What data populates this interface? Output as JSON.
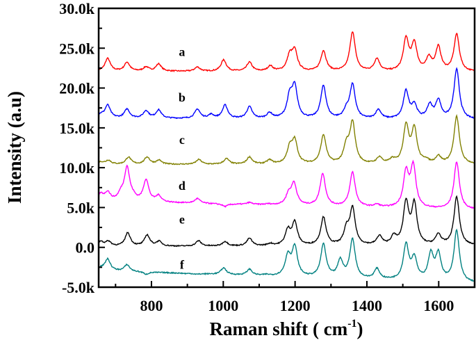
{
  "chart_data": {
    "type": "line",
    "xlabel": "Raman shift ( cm",
    "xlabel_sup": "-1",
    "xlabel_end": ")",
    "ylabel": "Intensity (a.u)",
    "xlim": [
      653,
      1700
    ],
    "ylim": [
      -5000,
      30000
    ],
    "xticks": [
      800,
      1000,
      1200,
      1400,
      1600
    ],
    "xticklabels": [
      "800",
      "1000",
      "1200",
      "1400",
      "1600"
    ],
    "yticks": [
      -5000,
      0,
      5000,
      10000,
      15000,
      20000,
      25000,
      30000
    ],
    "yticklabels": [
      "-5.0k",
      "0.0",
      "5.0k",
      "10.0k",
      "15.0k",
      "20.0k",
      "25.0k",
      "30.0k"
    ],
    "grid": false,
    "series": [
      {
        "label": "a",
        "label_x": 885,
        "label_y": 24000,
        "color": "#ff0000",
        "baseline_start": 22100,
        "baseline_end": 22000,
        "peaks": [
          [
            678,
            23700
          ],
          [
            732,
            23200
          ],
          [
            785,
            22600
          ],
          [
            820,
            23000
          ],
          [
            928,
            22600
          ],
          [
            1001,
            23500
          ],
          [
            1073,
            23200
          ],
          [
            1131,
            22700
          ],
          [
            1185,
            23900
          ],
          [
            1199,
            24500
          ],
          [
            1279,
            24600
          ],
          [
            1360,
            27000
          ],
          [
            1428,
            23600
          ],
          [
            1509,
            26000
          ],
          [
            1532,
            25400
          ],
          [
            1573,
            23600
          ],
          [
            1599,
            25000
          ],
          [
            1650,
            26700
          ]
        ]
      },
      {
        "label": "b",
        "label_x": 885,
        "label_y": 18300,
        "color": "#0000ff",
        "baseline_start": 16200,
        "baseline_end": 16000,
        "peaks": [
          [
            659,
            16600
          ],
          [
            678,
            17800
          ],
          [
            732,
            17300
          ],
          [
            785,
            17100
          ],
          [
            820,
            17200
          ],
          [
            928,
            17300
          ],
          [
            966,
            16600
          ],
          [
            1005,
            17800
          ],
          [
            1073,
            17600
          ],
          [
            1129,
            16800
          ],
          [
            1185,
            18700
          ],
          [
            1199,
            19900
          ],
          [
            1279,
            20200
          ],
          [
            1343,
            17000
          ],
          [
            1360,
            20300
          ],
          [
            1432,
            17200
          ],
          [
            1509,
            19500
          ],
          [
            1532,
            17700
          ],
          [
            1575,
            17700
          ],
          [
            1599,
            18300
          ],
          [
            1650,
            22300
          ]
        ]
      },
      {
        "label": "c",
        "label_x": 885,
        "label_y": 13000,
        "color": "#808000",
        "baseline_start": 10400,
        "baseline_end": 10400,
        "peaks": [
          [
            659,
            10700
          ],
          [
            680,
            10900
          ],
          [
            736,
            11300
          ],
          [
            788,
            11300
          ],
          [
            821,
            10900
          ],
          [
            932,
            11000
          ],
          [
            1009,
            11100
          ],
          [
            1073,
            11300
          ],
          [
            1129,
            10900
          ],
          [
            1185,
            12300
          ],
          [
            1199,
            13200
          ],
          [
            1279,
            14000
          ],
          [
            1343,
            12500
          ],
          [
            1360,
            15500
          ],
          [
            1435,
            11200
          ],
          [
            1471,
            10900
          ],
          [
            1509,
            15100
          ],
          [
            1532,
            14700
          ],
          [
            1564,
            10800
          ],
          [
            1599,
            11300
          ],
          [
            1650,
            16400
          ]
        ]
      },
      {
        "label": "d",
        "label_x": 885,
        "label_y": 7200,
        "color": "#ff00ff",
        "baseline_start": 5800,
        "baseline_end": 4700,
        "peaks": [
          [
            659,
            6600
          ],
          [
            678,
            6800
          ],
          [
            715,
            6500
          ],
          [
            732,
            9900
          ],
          [
            749,
            6100
          ],
          [
            785,
            8400
          ],
          [
            820,
            6400
          ],
          [
            928,
            6100
          ],
          [
            1005,
            5100
          ],
          [
            1073,
            5600
          ],
          [
            1125,
            5400
          ],
          [
            1182,
            6500
          ],
          [
            1197,
            7900
          ],
          [
            1277,
            9200
          ],
          [
            1360,
            9400
          ],
          [
            1428,
            5300
          ],
          [
            1509,
            9200
          ],
          [
            1529,
            10000
          ],
          [
            1650,
            10700
          ]
        ]
      },
      {
        "label": "e",
        "label_x": 885,
        "label_y": 3000,
        "color": "#000000",
        "baseline_start": 100,
        "baseline_end": 200,
        "peaks": [
          [
            659,
            700
          ],
          [
            680,
            700
          ],
          [
            734,
            1800
          ],
          [
            788,
            1500
          ],
          [
            821,
            700
          ],
          [
            931,
            800
          ],
          [
            1005,
            700
          ],
          [
            1073,
            1100
          ],
          [
            1131,
            400
          ],
          [
            1180,
            2000
          ],
          [
            1199,
            3000
          ],
          [
            1279,
            3700
          ],
          [
            1343,
            2000
          ],
          [
            1360,
            4700
          ],
          [
            1435,
            1300
          ],
          [
            1475,
            1200
          ],
          [
            1509,
            5400
          ],
          [
            1532,
            5200
          ],
          [
            1599,
            1500
          ],
          [
            1650,
            6300
          ]
        ]
      },
      {
        "label": "f",
        "label_x": 885,
        "label_y": -2700,
        "color": "#008080",
        "baseline_start": -2900,
        "baseline_end": -4500,
        "peaks": [
          [
            659,
            -2600
          ],
          [
            678,
            -1500
          ],
          [
            732,
            -2200
          ],
          [
            785,
            -3400
          ],
          [
            894,
            -3300
          ],
          [
            928,
            -3400
          ],
          [
            1001,
            -2600
          ],
          [
            1073,
            -2800
          ],
          [
            1120,
            -3500
          ],
          [
            1180,
            -1200
          ],
          [
            1199,
            -100
          ],
          [
            1279,
            300
          ],
          [
            1326,
            -1800
          ],
          [
            1360,
            900
          ],
          [
            1428,
            -2800
          ],
          [
            1509,
            200
          ],
          [
            1532,
            -1600
          ],
          [
            1578,
            -1100
          ],
          [
            1599,
            -1100
          ],
          [
            1650,
            2000
          ]
        ]
      }
    ]
  }
}
